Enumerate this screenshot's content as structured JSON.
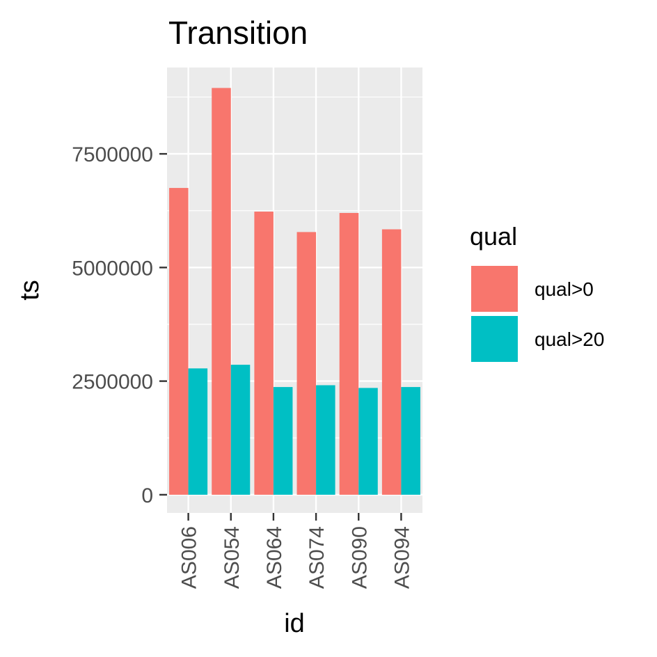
{
  "chart_data": {
    "type": "bar",
    "title": "Transition",
    "xlabel": "id",
    "ylabel": "ts",
    "categories": [
      "AS006",
      "AS054",
      "AS064",
      "AS074",
      "AS090",
      "AS094"
    ],
    "series": [
      {
        "name": "qual>0",
        "color": "#F8766D",
        "values": [
          6750000,
          8950000,
          6230000,
          5780000,
          6200000,
          5840000
        ]
      },
      {
        "name": "qual>20",
        "color": "#00BFC4",
        "values": [
          2780000,
          2860000,
          2370000,
          2410000,
          2350000,
          2370000
        ]
      }
    ],
    "ylim": [
      -400000,
      9400000
    ],
    "yticks": [
      0,
      2500000,
      5000000,
      7500000
    ],
    "ytick_labels": [
      "0",
      "2500000",
      "5000000",
      "7500000"
    ],
    "grid": true,
    "legend": {
      "title": "qual",
      "position": "right"
    },
    "colors": {
      "panel": "#EBEBEB",
      "grid": "#FFFFFF",
      "tick": "#333333"
    }
  }
}
